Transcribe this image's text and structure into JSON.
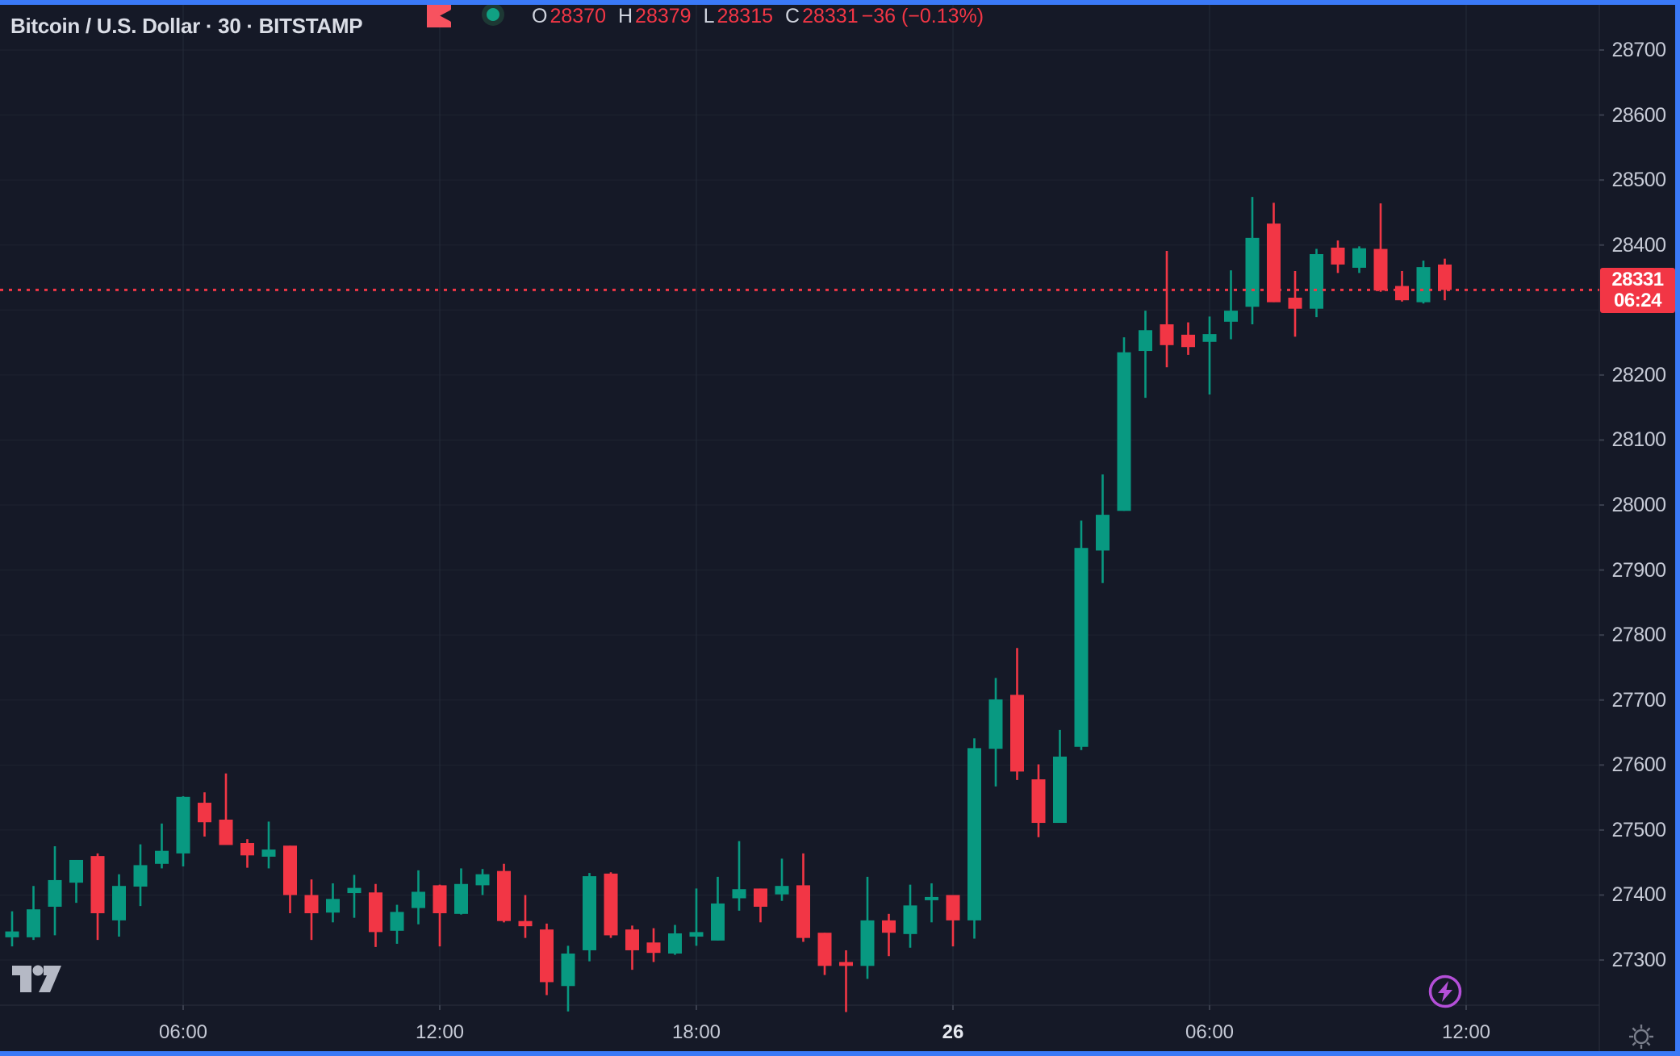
{
  "header": {
    "symbol_title": "Bitcoin / U.S. Dollar · 30 · BITSTAMP",
    "ohlc": {
      "o_label": "O",
      "o": "28370",
      "h_label": "H",
      "h": "28379",
      "l_label": "L",
      "l": "28315",
      "c_label": "C",
      "c": "28331",
      "change": "−36 (−0.13%)"
    }
  },
  "price_tag": {
    "price": "28331",
    "countdown": "06:24"
  },
  "icons": {
    "flag": "flag-icon",
    "status": "status-dot-icon",
    "logo": "tradingview-logo",
    "lightning": "lightning-boost-icon",
    "sun": "theme-sun-icon"
  },
  "colors": {
    "up": "#089981",
    "down": "#f23645",
    "price_line": "#f23645",
    "tag_bg": "#f23645",
    "background": "#151927",
    "grid_h": "#1e2330",
    "grid_v": "#242a39",
    "border": "#2a2f3d",
    "tick": "#3a3f4e",
    "axis_text": "#c6cad6",
    "frame_blue": "#3a79f7",
    "purple": "#b44fd8"
  },
  "chart_data": {
    "type": "candlestick",
    "symbol": "Bitcoin / U.S. Dollar",
    "exchange": "BITSTAMP",
    "interval_minutes": 30,
    "title": "Bitcoin / U.S. Dollar · 30 · BITSTAMP",
    "ylim": [
      27220,
      28700
    ],
    "grid": true,
    "price_line_value": 28331,
    "price_axis_ticks": [
      28700,
      28600,
      28500,
      28400,
      28300,
      28200,
      28100,
      28000,
      27900,
      27800,
      27700,
      27600,
      27500,
      27400,
      27300
    ],
    "time_axis_ticks": [
      {
        "label": "06:00",
        "candle_index": 9,
        "emphasis": false
      },
      {
        "label": "12:00",
        "candle_index": 21,
        "emphasis": false
      },
      {
        "label": "18:00",
        "candle_index": 33,
        "emphasis": false
      },
      {
        "label": "26",
        "candle_index": 45,
        "emphasis": true
      },
      {
        "label": "06:00",
        "candle_index": 57,
        "emphasis": false
      },
      {
        "label": "12:00",
        "candle_index": 69,
        "emphasis": false
      }
    ],
    "candles_ohlc": [
      [
        27335,
        27375,
        27321,
        27344
      ],
      [
        27335,
        27414,
        27331,
        27378
      ],
      [
        27382,
        27475,
        27338,
        27423
      ],
      [
        27419,
        27454,
        27388,
        27454
      ],
      [
        27460,
        27464,
        27331,
        27372
      ],
      [
        27361,
        27432,
        27336,
        27414
      ],
      [
        27413,
        27478,
        27383,
        27446
      ],
      [
        27448,
        27510,
        27441,
        27468
      ],
      [
        27464,
        27552,
        27444,
        27551
      ],
      [
        27542,
        27558,
        27490,
        27512
      ],
      [
        27516,
        27587,
        27478,
        27477
      ],
      [
        27480,
        27486,
        27442,
        27461
      ],
      [
        27459,
        27513,
        27441,
        27470
      ],
      [
        27476,
        27476,
        27372,
        27400
      ],
      [
        27400,
        27424,
        27331,
        27372
      ],
      [
        27373,
        27418,
        27358,
        27394
      ],
      [
        27403,
        27431,
        27365,
        27411
      ],
      [
        27404,
        27417,
        27320,
        27343
      ],
      [
        27345,
        27385,
        27325,
        27374
      ],
      [
        27380,
        27438,
        27355,
        27405
      ],
      [
        27415,
        27416,
        27321,
        27372
      ],
      [
        27371,
        27441,
        27370,
        27417
      ],
      [
        27415,
        27440,
        27400,
        27432
      ],
      [
        27437,
        27448,
        27358,
        27360
      ],
      [
        27360,
        27400,
        27334,
        27352
      ],
      [
        27347,
        27356,
        27246,
        27266
      ],
      [
        27260,
        27322,
        27221,
        27310
      ],
      [
        27315,
        27434,
        27298,
        27429
      ],
      [
        27433,
        27435,
        27334,
        27338
      ],
      [
        27347,
        27353,
        27285,
        27315
      ],
      [
        27327,
        27349,
        27297,
        27311
      ],
      [
        27310,
        27354,
        27308,
        27341
      ],
      [
        27336,
        27410,
        27322,
        27343
      ],
      [
        27330,
        27428,
        27330,
        27387
      ],
      [
        27395,
        27483,
        27376,
        27409
      ],
      [
        27410,
        27410,
        27358,
        27382
      ],
      [
        27401,
        27456,
        27391,
        27414
      ],
      [
        27415,
        27464,
        27328,
        27334
      ],
      [
        27342,
        27342,
        27277,
        27291
      ],
      [
        27297,
        27315,
        27220,
        27291
      ],
      [
        27291,
        27428,
        27271,
        27361
      ],
      [
        27361,
        27371,
        27306,
        27342
      ],
      [
        27340,
        27416,
        27319,
        27384
      ],
      [
        27392,
        27418,
        27358,
        27397
      ],
      [
        27400,
        27400,
        27321,
        27361
      ],
      [
        27361,
        27641,
        27333,
        27626
      ],
      [
        27625,
        27734,
        27567,
        27701
      ],
      [
        27708,
        27780,
        27577,
        27590
      ],
      [
        27578,
        27601,
        27489,
        27511
      ],
      [
        27511,
        27654,
        27511,
        27613
      ],
      [
        27628,
        27976,
        27623,
        27934
      ],
      [
        27930,
        28047,
        27880,
        27985
      ],
      [
        27991,
        28258,
        27991,
        28235
      ],
      [
        28237,
        28299,
        28165,
        28269
      ],
      [
        28278,
        28391,
        28212,
        28246
      ],
      [
        28262,
        28281,
        28231,
        28243
      ],
      [
        28251,
        28290,
        28170,
        28263
      ],
      [
        28282,
        28361,
        28255,
        28299
      ],
      [
        28305,
        28474,
        28278,
        28411
      ],
      [
        28433,
        28465,
        28312,
        28312
      ],
      [
        28319,
        28360,
        28259,
        28302
      ],
      [
        28302,
        28394,
        28289,
        28386
      ],
      [
        28396,
        28407,
        28357,
        28370
      ],
      [
        28365,
        28398,
        28357,
        28395
      ],
      [
        28394,
        28464,
        28328,
        28330
      ],
      [
        28337,
        28360,
        28313,
        28315
      ],
      [
        28312,
        28376,
        28310,
        28366
      ],
      [
        28370,
        28379,
        28315,
        28331
      ]
    ]
  }
}
